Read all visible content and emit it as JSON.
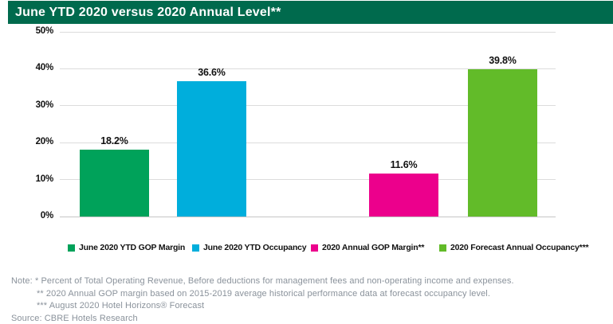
{
  "header": {
    "title": "June YTD 2020 versus 2020 Annual Level**",
    "background_color": "#006A4D"
  },
  "chart_data": {
    "type": "bar",
    "title": "June YTD 2020 versus 2020 Annual Level**",
    "categories": [
      "June 2020 YTD GOP Margin",
      "June 2020 YTD Occupancy",
      "2020 Annual GOP Margin**",
      "2020 Forecast Annual Occupancy***"
    ],
    "values": [
      18.2,
      36.6,
      11.6,
      39.8
    ],
    "value_labels": [
      "18.2%",
      "36.6%",
      "11.6%",
      "39.8%"
    ],
    "colors": [
      "#00A25A",
      "#00AEDC",
      "#EC008C",
      "#62BB29"
    ],
    "xlabel": "",
    "ylabel": "",
    "ylim": [
      0,
      50
    ],
    "ytick_values": [
      0,
      10,
      20,
      30,
      40,
      50
    ],
    "yticks": [
      "0%",
      "10%",
      "20%",
      "30%",
      "40%",
      "50%"
    ],
    "grid": "horizontal",
    "legend_position": "bottom"
  },
  "legend": {
    "items": [
      {
        "label": "June 2020 YTD GOP Margin",
        "color": "#00A25A"
      },
      {
        "label": "June 2020 YTD Occupancy",
        "color": "#00AEDC"
      },
      {
        "label": "2020 Annual GOP Margin**",
        "color": "#EC008C"
      },
      {
        "label": "2020 Forecast Annual Occupancy***",
        "color": "#62BB29"
      }
    ]
  },
  "notes": {
    "line1": "Note: * Percent of Total Operating Revenue, Before deductions for management fees and non-operating income and expenses.",
    "line2": "** 2020 Annual GOP margin based on 2015-2019 average historical performance data at forecast occupancy level.",
    "line3": "*** August 2020 Hotel Horizons® Forecast",
    "line4": "Source: CBRE Hotels Research"
  }
}
